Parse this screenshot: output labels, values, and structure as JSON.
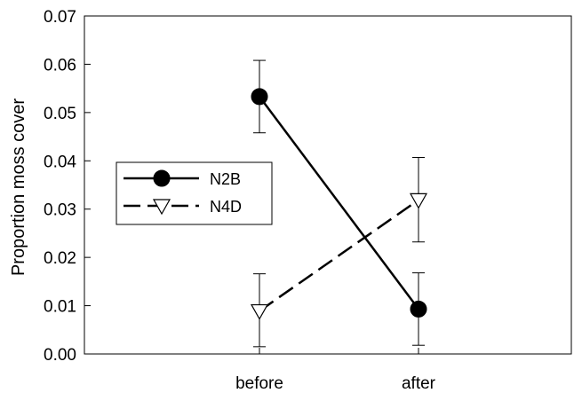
{
  "chart_data": {
    "type": "line",
    "title": "",
    "xlabel": "",
    "ylabel": "Proportion moss cover",
    "categories": [
      "before",
      "after"
    ],
    "ylim": [
      0,
      0.07
    ],
    "yticks": [
      "0.00",
      "0.01",
      "0.02",
      "0.03",
      "0.04",
      "0.05",
      "0.06",
      "0.07"
    ],
    "grid": false,
    "legend_position": "middle-left",
    "series": [
      {
        "name": "N2B",
        "values": [
          0.0533,
          0.0093
        ],
        "error_low": [
          0.0458,
          0.0018
        ],
        "error_high": [
          0.0608,
          0.0168
        ],
        "marker": "filled-circle",
        "line_style": "solid",
        "color": "#000000"
      },
      {
        "name": "N4D",
        "values": [
          0.0089,
          0.0319
        ],
        "error_low": [
          0.0015,
          0.0232
        ],
        "error_high": [
          0.0166,
          0.0407
        ],
        "marker": "open-triangle-down",
        "line_style": "dashed",
        "color": "#000000"
      }
    ]
  }
}
